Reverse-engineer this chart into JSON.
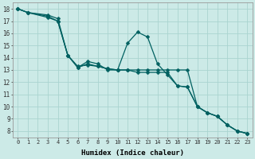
{
  "xlabel": "Humidex (Indice chaleur)",
  "background_color": "#cceae7",
  "grid_color": "#aad4d0",
  "line_color": "#006060",
  "xlim": [
    -0.5,
    23.5
  ],
  "ylim": [
    7.5,
    18.5
  ],
  "xticks": [
    0,
    1,
    2,
    3,
    4,
    5,
    6,
    7,
    8,
    9,
    10,
    11,
    12,
    13,
    14,
    15,
    16,
    17,
    18,
    19,
    20,
    21,
    22,
    23
  ],
  "yticks": [
    8,
    9,
    10,
    11,
    12,
    13,
    14,
    15,
    16,
    17,
    18
  ],
  "series1_x": [
    0,
    1,
    3,
    4,
    5,
    6,
    7,
    8,
    9,
    10,
    11,
    12,
    13,
    14,
    15,
    16,
    17,
    18,
    19,
    20,
    21,
    22,
    23
  ],
  "series1_y": [
    18.0,
    17.7,
    17.4,
    17.0,
    14.2,
    13.2,
    13.7,
    13.5,
    13.0,
    13.0,
    15.2,
    16.1,
    15.7,
    13.5,
    12.6,
    11.7,
    11.6,
    10.0,
    9.5,
    9.2,
    8.5,
    8.0,
    7.8
  ],
  "series2_x": [
    0,
    1,
    3,
    4,
    5,
    6,
    7,
    8,
    9,
    10,
    11,
    12,
    13,
    14,
    15,
    16,
    17,
    18,
    19,
    20,
    21,
    22,
    23
  ],
  "series2_y": [
    18.0,
    17.7,
    17.3,
    17.0,
    14.2,
    13.3,
    13.4,
    13.3,
    13.1,
    13.0,
    13.0,
    13.0,
    13.0,
    13.0,
    13.0,
    13.0,
    13.0,
    10.0,
    9.5,
    9.2,
    8.5,
    8.0,
    7.8
  ],
  "series3_x": [
    0,
    1,
    3,
    4,
    5,
    6,
    7,
    8,
    9,
    10,
    11,
    12,
    13,
    14,
    15,
    16,
    17,
    18,
    19,
    20,
    21,
    22,
    23
  ],
  "series3_y": [
    18.0,
    17.7,
    17.5,
    17.2,
    14.2,
    13.2,
    13.5,
    13.3,
    13.1,
    13.0,
    13.0,
    12.8,
    12.8,
    12.8,
    12.8,
    11.7,
    11.6,
    10.0,
    9.5,
    9.2,
    8.5,
    8.0,
    7.8
  ],
  "marker_size": 2.5,
  "line_width": 0.9
}
